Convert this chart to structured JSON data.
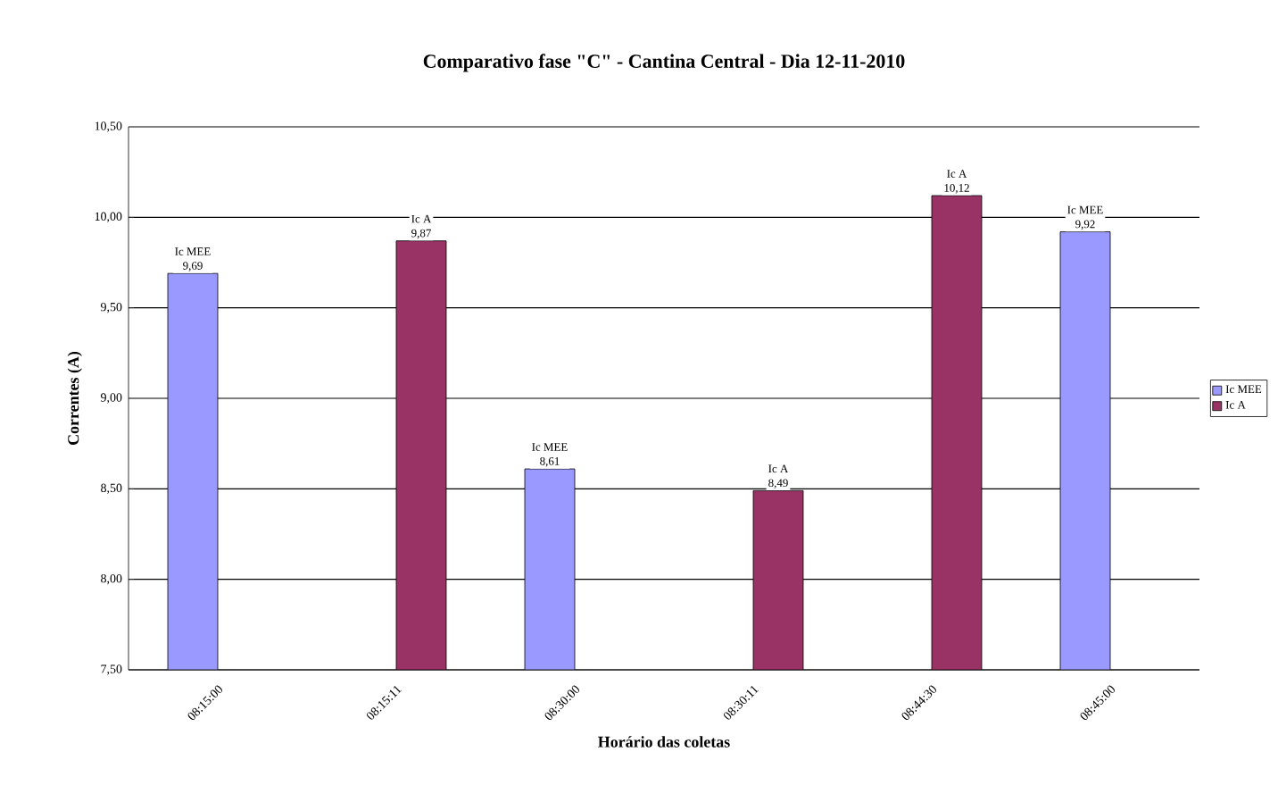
{
  "chart_data": {
    "type": "bar",
    "title": "Comparativo fase \"C\" - Cantina Central - Dia 12-11-2010",
    "xlabel": "Horário das coletas",
    "ylabel": "Correntes (A)",
    "categories": [
      "08:15:00",
      "08:15:11",
      "08:30:00",
      "08:30:11",
      "08:44:30",
      "08:45:00"
    ],
    "series": [
      {
        "name": "Ic MEE",
        "color": "#9999ff",
        "values": [
          9.69,
          null,
          8.61,
          null,
          null,
          9.92
        ],
        "value_labels": [
          "9,69",
          null,
          "8,61",
          null,
          null,
          "9,92"
        ]
      },
      {
        "name": "Ic A",
        "color": "#993366",
        "values": [
          null,
          9.87,
          null,
          8.49,
          10.12,
          null
        ],
        "value_labels": [
          null,
          "9,87",
          null,
          "8,49",
          "10,12",
          null
        ]
      }
    ],
    "ylim": [
      7.5,
      10.5
    ],
    "yticks": [
      {
        "value": 7.5,
        "label": "7,50"
      },
      {
        "value": 8.0,
        "label": "8,00"
      },
      {
        "value": 8.5,
        "label": "8,50"
      },
      {
        "value": 9.0,
        "label": "9,00"
      },
      {
        "value": 9.5,
        "label": "9,50"
      },
      {
        "value": 10.0,
        "label": "10,00"
      },
      {
        "value": 10.5,
        "label": "10,50"
      }
    ],
    "grid": "y",
    "legend": "right"
  }
}
